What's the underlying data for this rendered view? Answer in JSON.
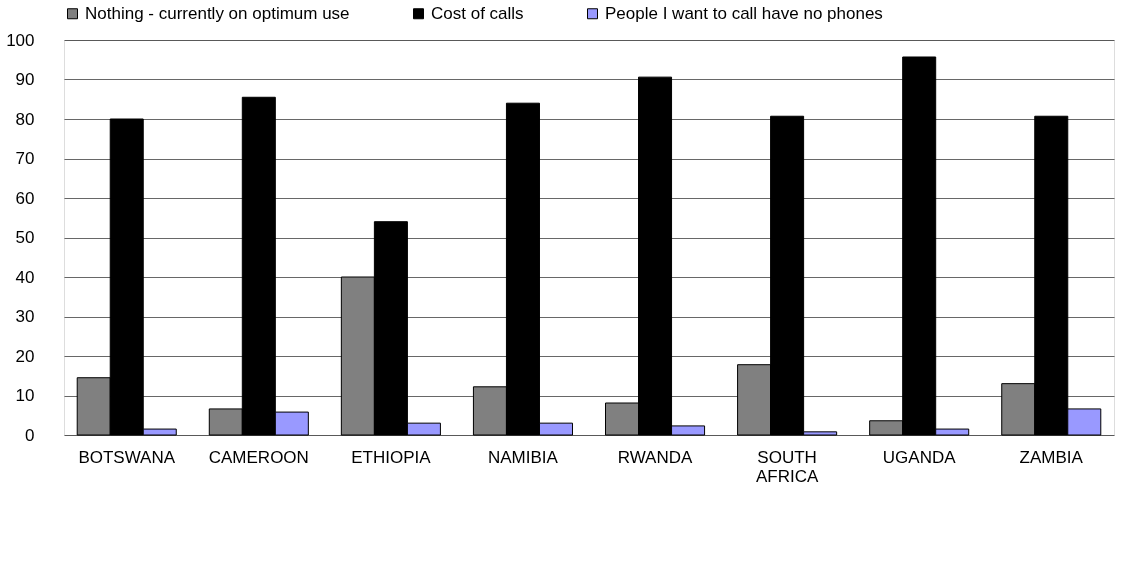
{
  "chart_data": {
    "type": "bar",
    "categories": [
      "BOTSWANA",
      "CAMEROON",
      "ETHIOPIA",
      "NAMIBIA",
      "RWANDA",
      "SOUTH AFRICA",
      "UGANDA",
      "ZAMBIA"
    ],
    "series": [
      {
        "name": "Nothing - currently on optimum use",
        "color": "#808080",
        "values": [
          14.5,
          6.6,
          40,
          12.2,
          8.1,
          17.8,
          3.6,
          13
        ]
      },
      {
        "name": "Cost of calls",
        "color": "#000000",
        "values": [
          80,
          85.5,
          54,
          84,
          90.6,
          80.7,
          95.7,
          80.7
        ]
      },
      {
        "name": "People I want to call have no phones",
        "color": "#9999ff",
        "values": [
          1.5,
          5.8,
          3,
          3,
          2.3,
          0.8,
          1.5,
          6.6
        ]
      }
    ],
    "ylim": [
      0,
      100
    ],
    "yticks": [
      0,
      10,
      20,
      30,
      40,
      50,
      60,
      70,
      80,
      90,
      100
    ],
    "grid": "y",
    "legend": "top"
  }
}
